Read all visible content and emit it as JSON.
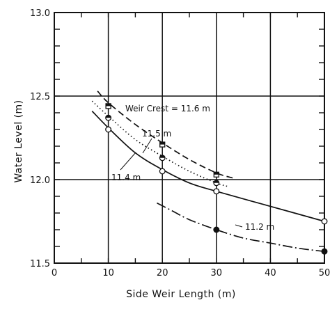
{
  "chart_data": {
    "type": "line",
    "xlabel": "Side Weir Length (m)",
    "ylabel": "Water Level (m)",
    "xlim": [
      0,
      50
    ],
    "ylim": [
      11.5,
      13.0
    ],
    "x_ticks": [
      0,
      10,
      20,
      30,
      40,
      50
    ],
    "x_tick_labels": [
      "0",
      "10",
      "20",
      "30",
      "40",
      "50"
    ],
    "y_ticks": [
      11.5,
      12.0,
      12.5,
      13.0
    ],
    "y_tick_labels": [
      "11.5",
      "12.0",
      "12.5",
      "13.0"
    ],
    "grid": true,
    "series": [
      {
        "name": "Weir Crest = 11.6 m",
        "line_style": "dashed",
        "marker": "square-half",
        "points": {
          "x": [
            10,
            20,
            30
          ],
          "y": [
            12.44,
            12.21,
            12.03
          ]
        },
        "curve": {
          "x": [
            8,
            10,
            15,
            20,
            25,
            30,
            33
          ],
          "y": [
            12.53,
            12.46,
            12.33,
            12.22,
            12.12,
            12.04,
            12.01
          ]
        }
      },
      {
        "name": "11.5 m",
        "line_style": "dotted",
        "marker": "half-filled-circle",
        "points": {
          "x": [
            10,
            20,
            30
          ],
          "y": [
            12.37,
            12.13,
            11.98
          ]
        },
        "curve": {
          "x": [
            7,
            10,
            15,
            20,
            25,
            30,
            32
          ],
          "y": [
            12.47,
            12.38,
            12.24,
            12.14,
            12.05,
            11.98,
            11.96
          ]
        }
      },
      {
        "name": "11.4 m",
        "line_style": "solid",
        "marker": "open-circle",
        "points": {
          "x": [
            10,
            20,
            30,
            50
          ],
          "y": [
            12.3,
            12.05,
            11.93,
            11.75
          ]
        },
        "curve": {
          "x": [
            7,
            10,
            15,
            20,
            25,
            30,
            40,
            50
          ],
          "y": [
            12.41,
            12.31,
            12.16,
            12.06,
            11.98,
            11.93,
            11.84,
            11.75
          ]
        }
      },
      {
        "name": "11.2 m",
        "line_style": "dash-dot",
        "marker": "filled-circle",
        "points": {
          "x": [
            30,
            50
          ],
          "y": [
            11.7,
            11.57
          ]
        },
        "curve": {
          "x": [
            19,
            22,
            25,
            30,
            35,
            40,
            45,
            50
          ],
          "y": [
            11.86,
            11.81,
            11.76,
            11.7,
            11.65,
            11.62,
            11.59,
            11.57
          ]
        }
      }
    ],
    "annotations": [
      {
        "text": "Weir Crest = 11.6 m",
        "series": 0
      },
      {
        "text": "11.5 m",
        "series": 1
      },
      {
        "text": "11.4 m",
        "series": 2
      },
      {
        "text": "11.2 m",
        "series": 3
      }
    ]
  }
}
